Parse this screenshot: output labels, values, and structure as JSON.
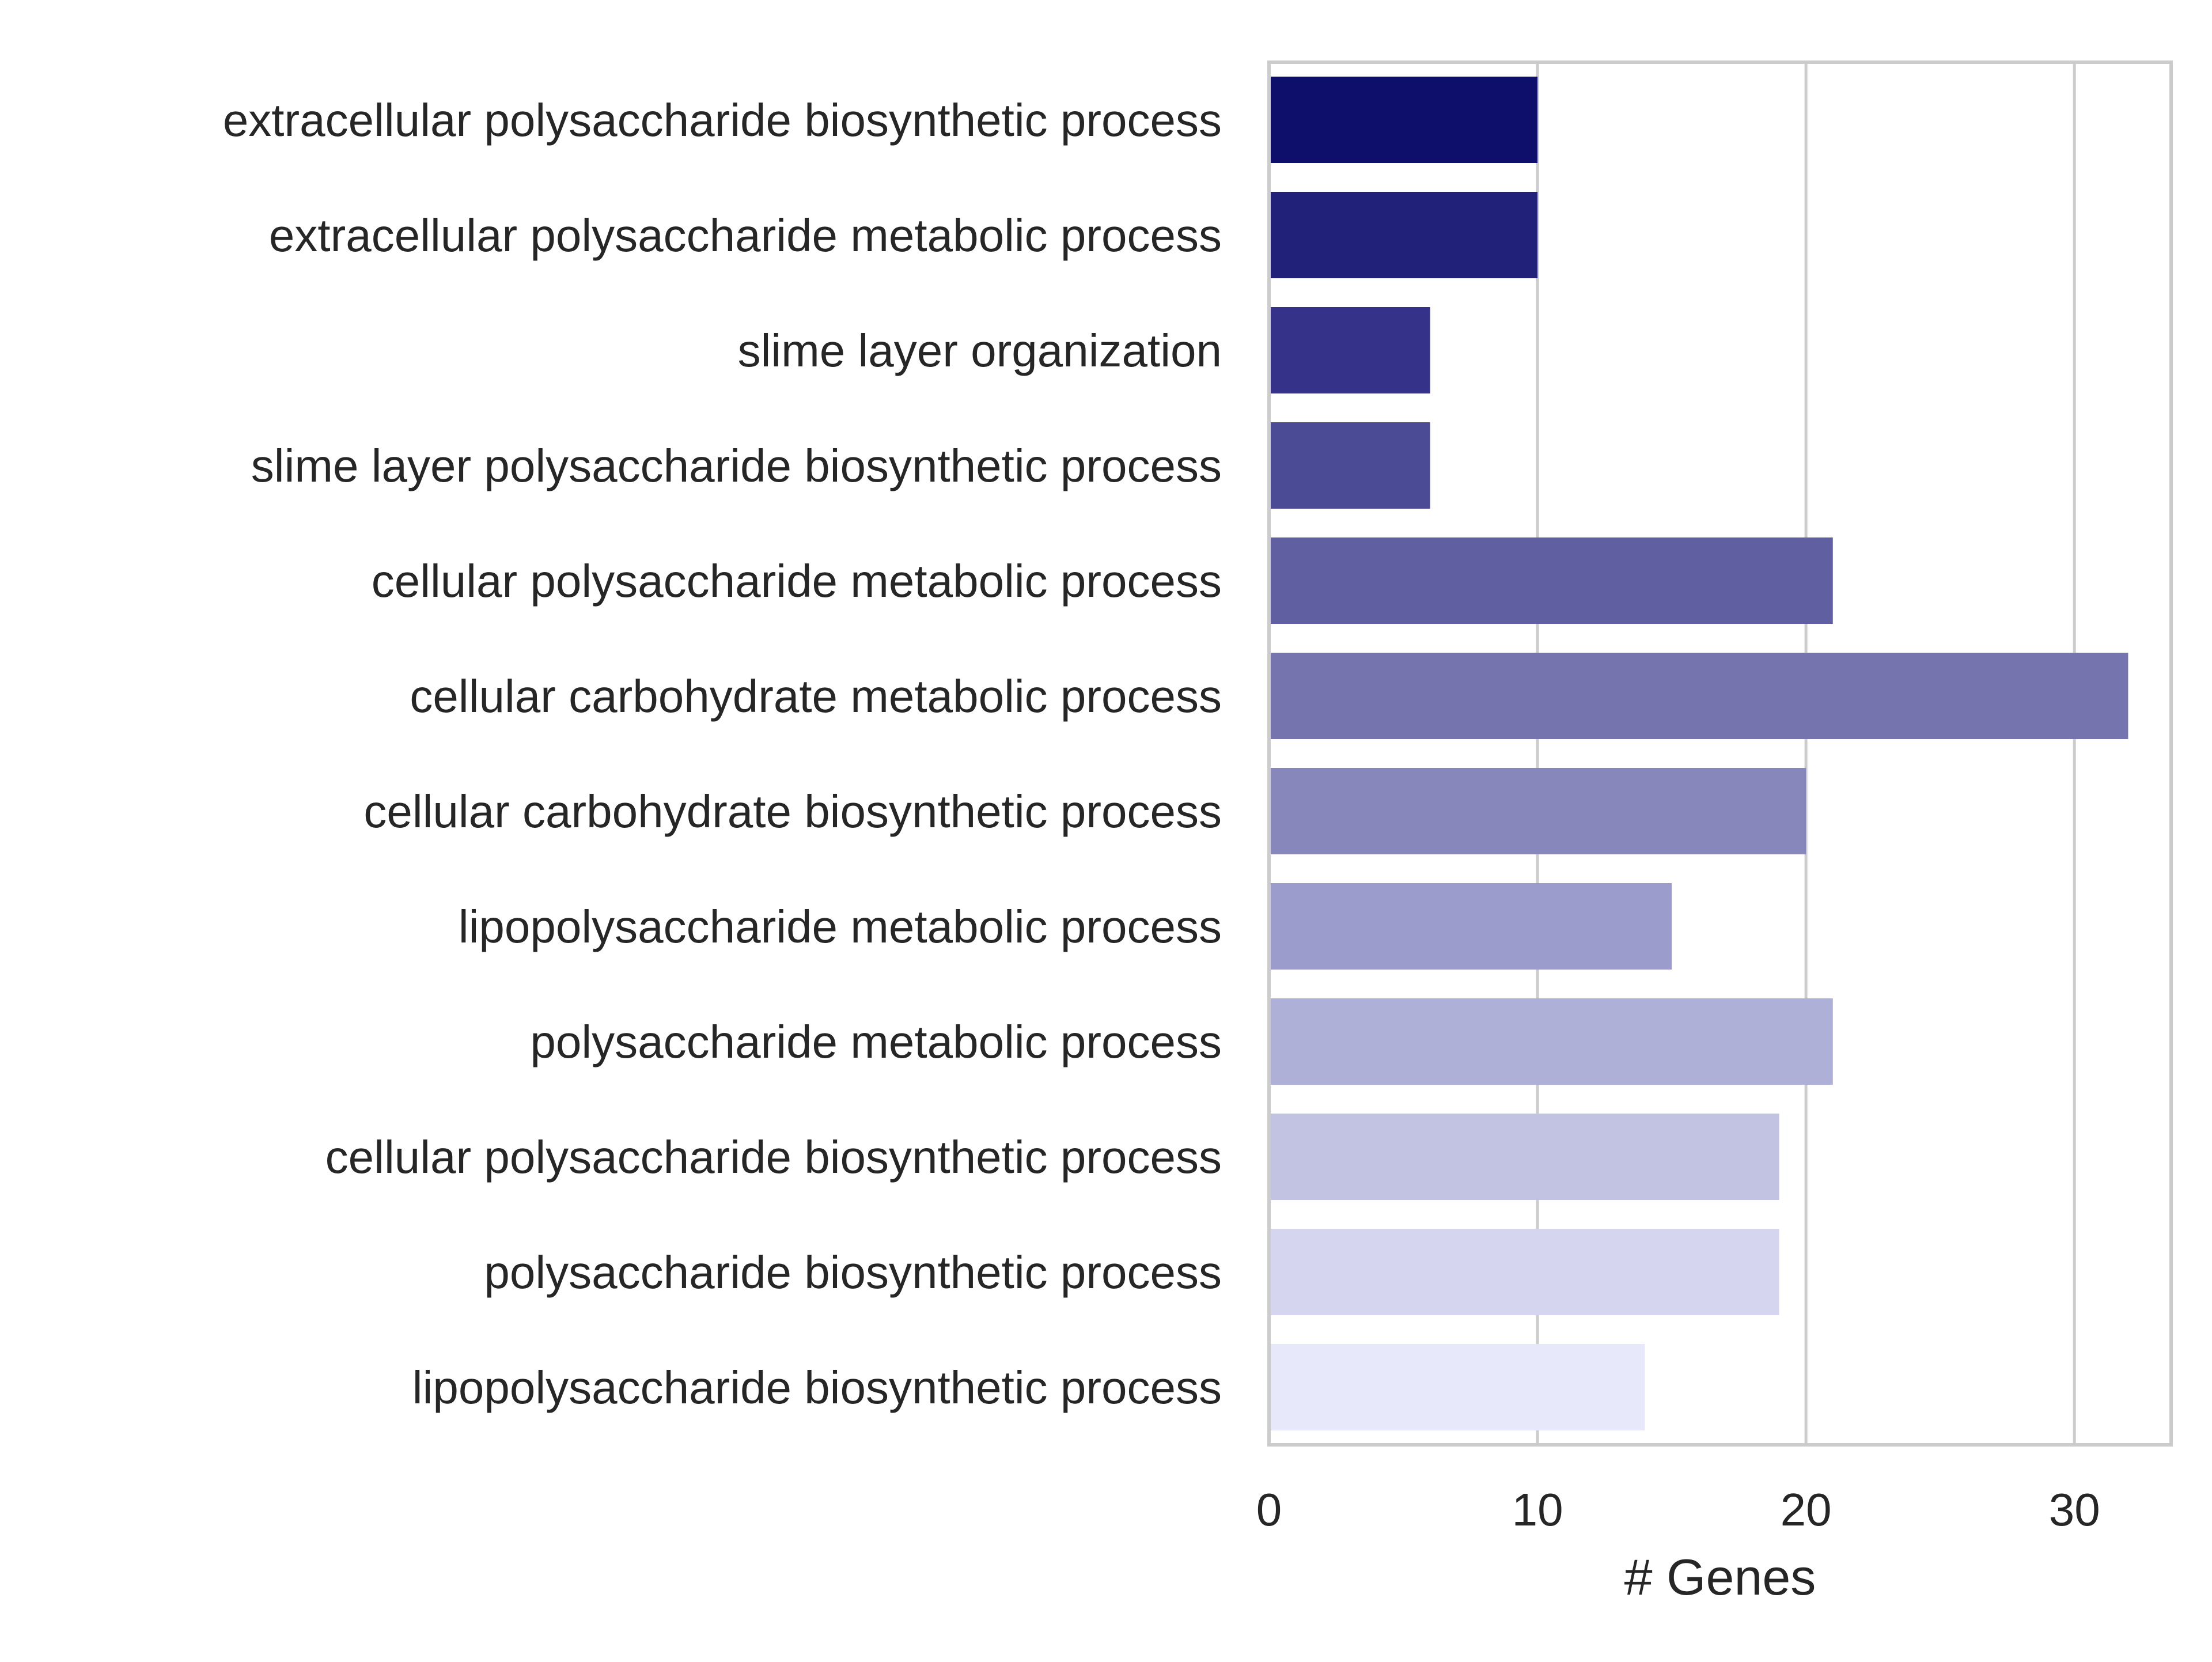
{
  "chart_data": {
    "type": "bar",
    "orientation": "horizontal",
    "title": "",
    "xlabel": "# Genes",
    "ylabel": "",
    "xlim": [
      0,
      33.6
    ],
    "xticks": [
      0,
      10,
      20,
      30
    ],
    "grid": "vertical",
    "categories": [
      "extracellular polysaccharide biosynthetic process",
      "extracellular polysaccharide metabolic process",
      "slime layer organization",
      "slime layer polysaccharide biosynthetic process",
      "cellular polysaccharide metabolic process",
      "cellular carbohydrate metabolic process",
      "cellular carbohydrate biosynthetic process",
      "lipopolysaccharide metabolic process",
      "polysaccharide metabolic process",
      "cellular polysaccharide biosynthetic process",
      "polysaccharide biosynthetic process",
      "lipopolysaccharide biosynthetic process"
    ],
    "values": [
      10,
      10,
      6,
      6,
      21,
      32,
      20,
      15,
      21,
      19,
      19,
      14
    ],
    "colors": [
      "#0e0f6b",
      "#21217a",
      "#353389",
      "#4a4a95",
      "#5f5fa1",
      "#7574af",
      "#8787bc",
      "#9b9ccb",
      "#afb0d8",
      "#c2c3e3",
      "#d5d5f0",
      "#e8e8fb"
    ]
  }
}
